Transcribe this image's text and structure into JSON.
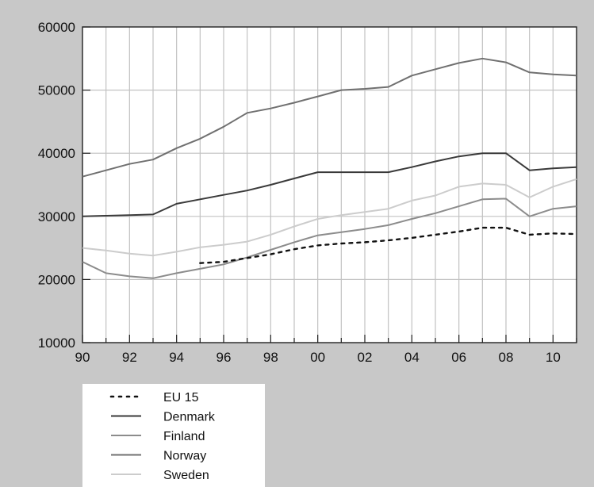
{
  "chart_data": {
    "type": "line",
    "title": "",
    "xlabel": "",
    "ylabel": "",
    "xlim": [
      1990,
      2011
    ],
    "ylim": [
      10000,
      60000
    ],
    "y_ticks": [
      10000,
      20000,
      30000,
      40000,
      50000,
      60000
    ],
    "y_tick_labels": [
      "10000",
      "20000",
      "30000",
      "40000",
      "50000",
      "60000"
    ],
    "x_ticks": [
      1990,
      1992,
      1994,
      1996,
      1998,
      2000,
      2002,
      2004,
      2006,
      2008,
      2010
    ],
    "x_tick_labels": [
      "90",
      "92",
      "94",
      "96",
      "98",
      "00",
      "02",
      "04",
      "06",
      "08",
      "10"
    ],
    "grid": true,
    "legend_position": "bottom-left, below plot",
    "colors": {
      "background": "#c8c8c8",
      "plot_area": "#ffffff",
      "grid": "#c2c2c2",
      "legend_box": "#ffffff"
    },
    "series": [
      {
        "name": "EU 15",
        "color": "#111111",
        "style": "dotted",
        "x": [
          1995,
          1996,
          1997,
          1998,
          1999,
          2000,
          2001,
          2002,
          2003,
          2004,
          2005,
          2006,
          2007,
          2008,
          2009,
          2010,
          2011
        ],
        "y": [
          22600,
          22800,
          23400,
          24000,
          24800,
          25400,
          25700,
          25900,
          26200,
          26600,
          27100,
          27600,
          28200,
          28200,
          27100,
          27300,
          27200
        ]
      },
      {
        "name": "Denmark",
        "color": "#3a3a3a",
        "style": "solid",
        "x": [
          1990,
          1991,
          1992,
          1993,
          1994,
          1995,
          1996,
          1997,
          1998,
          1999,
          2000,
          2001,
          2002,
          2003,
          2004,
          2005,
          2006,
          2007,
          2008,
          2009,
          2010,
          2011
        ],
        "y": [
          30000,
          30100,
          30200,
          30300,
          32000,
          32700,
          33400,
          34100,
          35000,
          36000,
          37000,
          37000,
          37000,
          37000,
          37800,
          38700,
          39500,
          40000,
          40000,
          37300,
          37600,
          37800
        ]
      },
      {
        "name": "Finland",
        "color": "#8c8c8c",
        "style": "solid",
        "x": [
          1990,
          1991,
          1992,
          1993,
          1994,
          1995,
          1996,
          1997,
          1998,
          1999,
          2000,
          2001,
          2002,
          2003,
          2004,
          2005,
          2006,
          2007,
          2008,
          2009,
          2010,
          2011
        ],
        "y": [
          22800,
          21000,
          20500,
          20200,
          21000,
          21700,
          22400,
          23500,
          24700,
          25900,
          27000,
          27500,
          28000,
          28600,
          29600,
          30500,
          31600,
          32700,
          32800,
          30000,
          31200,
          31600
        ]
      },
      {
        "name": "Norway",
        "color": "#707070",
        "style": "solid",
        "x": [
          1990,
          1991,
          1992,
          1993,
          1994,
          1995,
          1996,
          1997,
          1998,
          1999,
          2000,
          2001,
          2002,
          2003,
          2004,
          2005,
          2006,
          2007,
          2008,
          2009,
          2010,
          2011
        ],
        "y": [
          36300,
          37300,
          38300,
          39000,
          40800,
          42300,
          44200,
          46400,
          47100,
          48000,
          49000,
          50000,
          50200,
          50500,
          52300,
          53300,
          54300,
          55000,
          54400,
          52800,
          52500,
          52300
        ]
      },
      {
        "name": "Sweden",
        "color": "#cccccc",
        "style": "solid",
        "x": [
          1990,
          1991,
          1992,
          1993,
          1994,
          1995,
          1996,
          1997,
          1998,
          1999,
          2000,
          2001,
          2002,
          2003,
          2004,
          2005,
          2006,
          2007,
          2008,
          2009,
          2010,
          2011
        ],
        "y": [
          25000,
          24600,
          24100,
          23800,
          24400,
          25100,
          25500,
          26000,
          27100,
          28400,
          29600,
          30200,
          30700,
          31200,
          32500,
          33300,
          34700,
          35200,
          35000,
          33000,
          34700,
          35900
        ]
      }
    ]
  }
}
